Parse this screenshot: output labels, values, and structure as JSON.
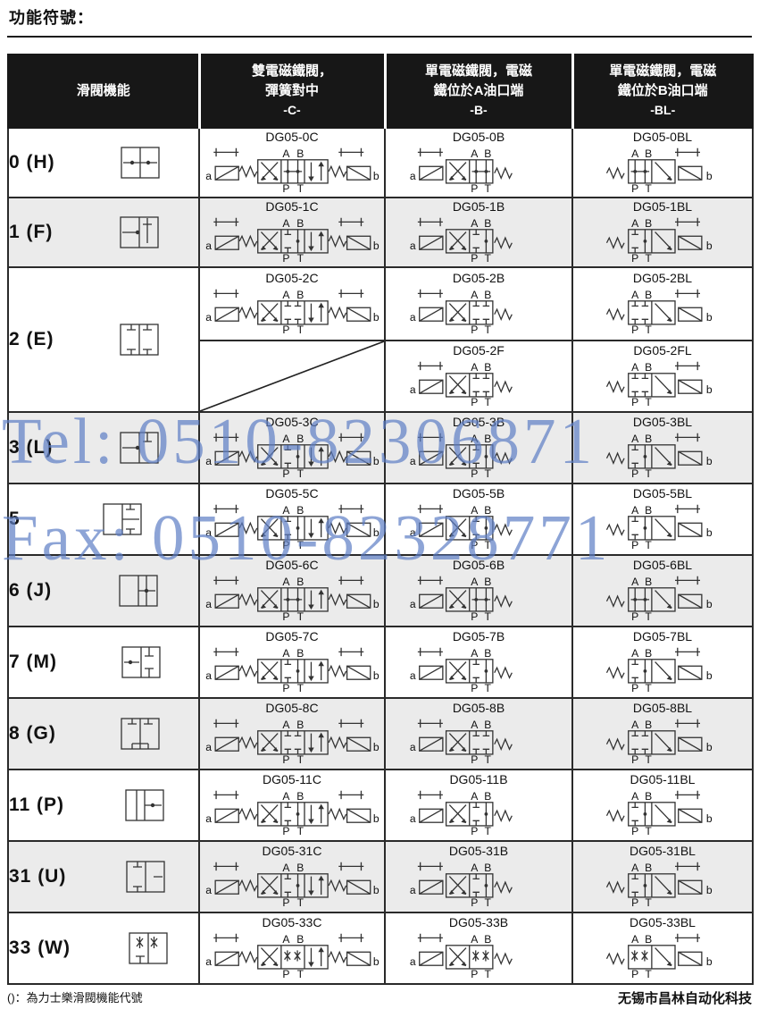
{
  "page": {
    "title": "功能符號：",
    "footnote": "()：為力士樂滑閥機能代號",
    "company": "无锡市昌林自动化科技"
  },
  "watermark": {
    "tel": "Tel: 0510-82306871",
    "fax": "Fax: 0510-82328771",
    "color": "#5d7ec5"
  },
  "table": {
    "headers": [
      {
        "label": "滑閥機能"
      },
      {
        "line1": "雙電磁鐵閥，",
        "line2": "彈簧對中",
        "code": "-C-"
      },
      {
        "line1": "單電磁鐵閥，電磁",
        "line2": "鐵位於A油口端",
        "code": "-B-"
      },
      {
        "line1": "單電磁鐵閥，電磁",
        "line2": "鐵位於B油口端",
        "code": "-BL-"
      }
    ],
    "port_labels": {
      "A": "A",
      "B": "B",
      "P": "P",
      "T": "T",
      "a": "a",
      "b": "b"
    },
    "rows": [
      {
        "function": "0 (H)",
        "spool": "h",
        "c": "DG05-0C",
        "b": "DG05-0B",
        "bl": "DG05-0BL",
        "shaded": false
      },
      {
        "function": "1 (F)",
        "spool": "f",
        "c": "DG05-1C",
        "b": "DG05-1B",
        "bl": "DG05-1BL",
        "shaded": true
      },
      {
        "function": "2 (E)",
        "spool": "e",
        "c": "DG05-2C",
        "b": "DG05-2B",
        "bl": "DG05-2BL",
        "split": true,
        "c2_crossed_out": true,
        "b2": "DG05-2F",
        "bl2": "DG05-2FL",
        "shaded": false
      },
      {
        "function": "3 (L)",
        "spool": "l",
        "c": "DG05-3C",
        "b": "DG05-3B",
        "bl": "DG05-3BL",
        "shaded": true
      },
      {
        "function": "5",
        "spool": "five",
        "c": "DG05-5C",
        "b": "DG05-5B",
        "bl": "DG05-5BL",
        "shaded": false
      },
      {
        "function": "6 (J)",
        "spool": "j",
        "c": "DG05-6C",
        "b": "DG05-6B",
        "bl": "DG05-6BL",
        "shaded": true
      },
      {
        "function": "7 (M)",
        "spool": "m",
        "c": "DG05-7C",
        "b": "DG05-7B",
        "bl": "DG05-7BL",
        "shaded": false
      },
      {
        "function": "8 (G)",
        "spool": "g",
        "c": "DG05-8C",
        "b": "DG05-8B",
        "bl": "DG05-8BL",
        "shaded": true
      },
      {
        "function": "11 (P)",
        "spool": "p",
        "c": "DG05-11C",
        "b": "DG05-11B",
        "bl": "DG05-11BL",
        "shaded": false
      },
      {
        "function": "31 (U)",
        "spool": "u",
        "c": "DG05-31C",
        "b": "DG05-31B",
        "bl": "DG05-31BL",
        "shaded": true
      },
      {
        "function": "33 (W)",
        "spool": "w",
        "c": "DG05-33C",
        "b": "DG05-33B",
        "bl": "DG05-33BL",
        "shaded": false
      }
    ]
  }
}
